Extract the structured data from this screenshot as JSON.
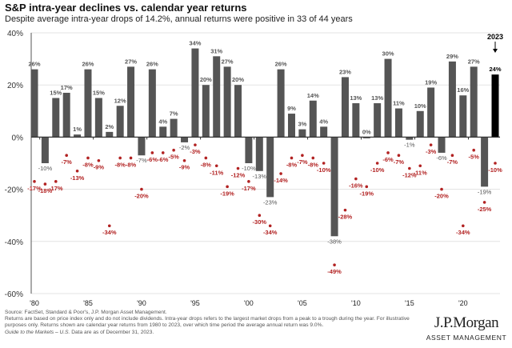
{
  "chart_data": {
    "type": "bar",
    "title": "S&P intra-year declines vs. calendar year returns",
    "subtitle": "Despite average intra-year drops of 14.2%, annual returns were positive in 33 of 44 years",
    "x": [
      1980,
      1981,
      1982,
      1983,
      1984,
      1985,
      1986,
      1987,
      1988,
      1989,
      1990,
      1991,
      1992,
      1993,
      1994,
      1995,
      1996,
      1997,
      1998,
      1999,
      2000,
      2001,
      2002,
      2003,
      2004,
      2005,
      2006,
      2007,
      2008,
      2009,
      2010,
      2011,
      2012,
      2013,
      2014,
      2015,
      2016,
      2017,
      2018,
      2019,
      2020,
      2021,
      2022,
      2023
    ],
    "x_tick_labels": [
      "'80",
      "'85",
      "'90",
      "'95",
      "'00",
      "'05",
      "'10",
      "'15",
      "'20"
    ],
    "y_tick_labels": [
      "40%",
      "20%",
      "0%",
      "-20%",
      "-40%",
      "-60%"
    ],
    "ylim": [
      -60,
      40
    ],
    "grid": true,
    "series": [
      {
        "type": "bar",
        "color": "#555555",
        "values": [
          26,
          -10,
          15,
          17,
          1,
          26,
          15,
          2,
          12,
          27,
          -7,
          26,
          4,
          7,
          -2,
          34,
          20,
          31,
          27,
          20,
          -10,
          -13,
          -23,
          26,
          9,
          3,
          14,
          4,
          -38,
          23,
          13,
          0,
          13,
          30,
          11,
          -1,
          10,
          19,
          -6,
          29,
          16,
          27,
          -19,
          24
        ]
      },
      {
        "type": "scatter",
        "color": "#b22222",
        "values": [
          -17,
          -18,
          -17,
          -7,
          -13,
          -8,
          -9,
          -34,
          -8,
          -8,
          -20,
          -6,
          -6,
          -5,
          -9,
          -3,
          -8,
          -11,
          -19,
          -12,
          -17,
          -30,
          -34,
          -14,
          -8,
          -7,
          -8,
          -10,
          -49,
          -28,
          -16,
          -19,
          -10,
          -6,
          -7,
          -12,
          -11,
          -3,
          -20,
          -7,
          -34,
          -5,
          -25,
          -10
        ]
      }
    ],
    "highlight": {
      "year_label": "2023",
      "color": "#000000"
    }
  },
  "footnotes": {
    "source": "Source: FactSet, Standard & Poor's, J.P. Morgan Asset Management.",
    "note": "Returns are based on price index only and do not include dividends. Intra-year drops refers to the largest market drops from a peak to a trough during the year. For illustrative purposes only. Returns shown are calendar year returns from 1980 to 2023, over which time period the average annual return was 9.0%.",
    "guide": "Guide to the Markets – U.S.",
    "date": " Data are as of December 31, 2023."
  },
  "logo": {
    "name": "J.P.Morgan",
    "tagline": "ASSET MANAGEMENT"
  }
}
